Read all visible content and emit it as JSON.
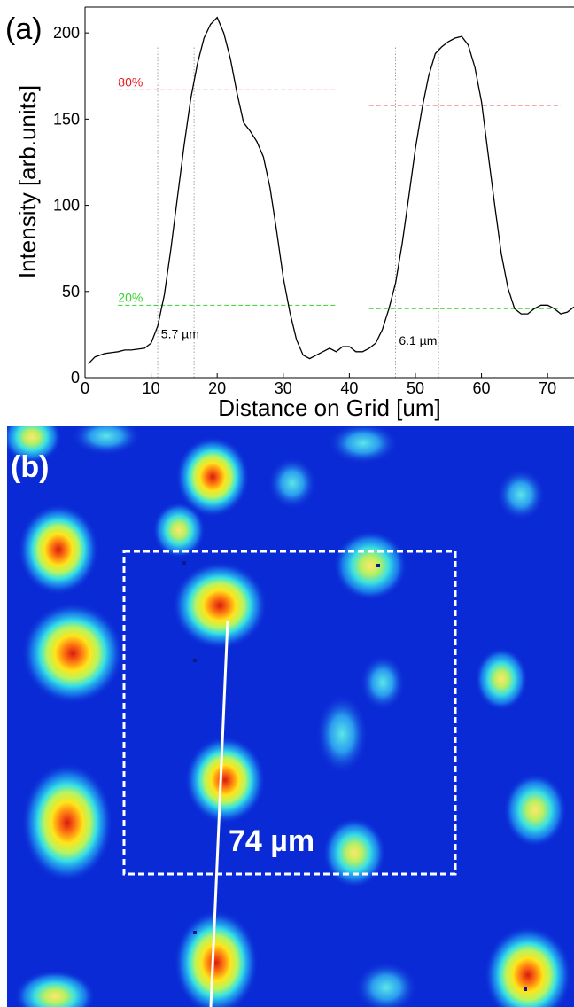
{
  "chart_data": {
    "type": "line",
    "panel_label": "(a)",
    "xlabel": "Distance on Grid [um]",
    "ylabel": "Intensity [arb.units]",
    "xlim": [
      0,
      74
    ],
    "ylim": [
      0,
      215
    ],
    "x_ticks": [
      "0",
      "10",
      "20",
      "30",
      "40",
      "50",
      "60",
      "70"
    ],
    "y_ticks": [
      "0",
      "50",
      "100",
      "150",
      "200"
    ],
    "series": [
      {
        "color": "#000000",
        "x": [
          0.5,
          1.5,
          3,
          5,
          6,
          7,
          9,
          10,
          11,
          12,
          13,
          14,
          15,
          16,
          17,
          18,
          19,
          20,
          21,
          22,
          23,
          24,
          25,
          26,
          27,
          28,
          29,
          30,
          31,
          32,
          33,
          34,
          35,
          36,
          37,
          38,
          39,
          40,
          41,
          42,
          43,
          44,
          45,
          46,
          47,
          48,
          49,
          50,
          51,
          52,
          53,
          54,
          55,
          56,
          57,
          58,
          59,
          60,
          61,
          62,
          63,
          64,
          65,
          66,
          67,
          68,
          69,
          70,
          71,
          72,
          73,
          74
        ],
        "y": [
          8,
          12,
          14,
          15,
          16,
          16,
          17,
          20,
          30,
          48,
          75,
          105,
          135,
          162,
          182,
          197,
          205,
          209,
          200,
          185,
          165,
          148,
          143,
          137,
          128,
          110,
          85,
          58,
          38,
          22,
          13,
          11,
          13,
          15,
          17,
          15,
          18,
          18,
          15,
          15,
          17,
          20,
          28,
          40,
          55,
          78,
          105,
          133,
          156,
          175,
          188,
          192,
          195,
          197,
          198,
          193,
          180,
          160,
          130,
          100,
          72,
          52,
          40,
          37,
          37,
          40,
          42,
          42,
          40,
          37,
          38,
          41
        ]
      }
    ],
    "reference_lines": [
      {
        "label": "80%",
        "color": "#e8191d",
        "y": 167,
        "x": [
          5,
          38
        ]
      },
      {
        "label": "",
        "color": "#e8191d",
        "y": 158,
        "x": [
          43,
          72
        ]
      },
      {
        "label": "20%",
        "color": "#35d12c",
        "y": 42,
        "x": [
          5,
          38
        ]
      },
      {
        "label": "",
        "color": "#35d12c",
        "y": 40,
        "x": [
          43,
          72
        ]
      }
    ],
    "vertical_markers": [
      11,
      16.5,
      47,
      53.5
    ],
    "width_annotations": [
      {
        "text": "5.7 µm",
        "x": 11.5,
        "y": 23
      },
      {
        "text": "6.1 µm",
        "x": 47.5,
        "y": 19
      }
    ]
  },
  "image_panel": {
    "panel_label": "(b)",
    "scale_label": "74 µm",
    "colormap": "jet"
  }
}
